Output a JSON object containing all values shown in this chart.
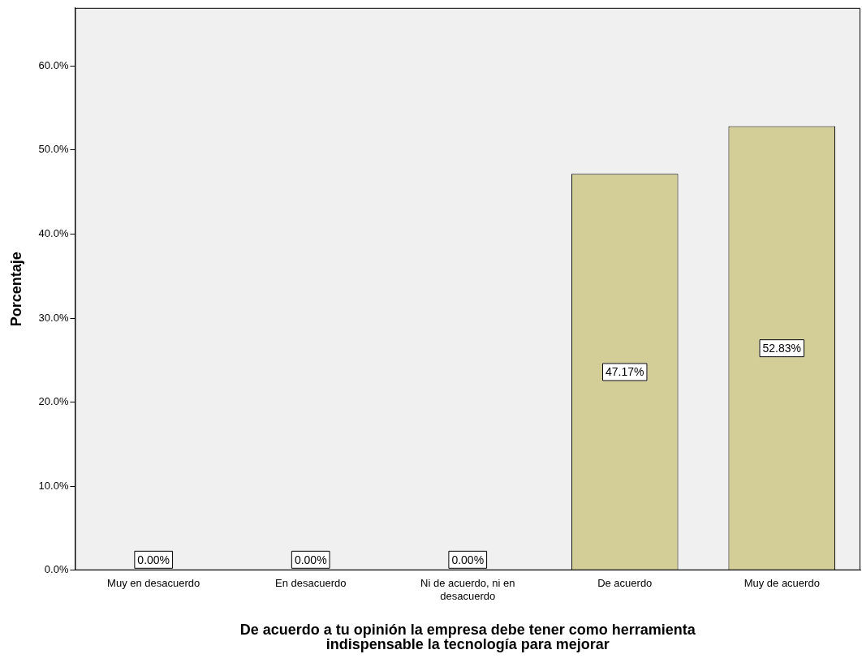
{
  "chart_data": {
    "type": "bar",
    "xlabel": "De acuerdo a tu opinión la empresa debe tener como herramienta indispensable la tecnología para mejorar",
    "ylabel": "Porcentaje",
    "categories": [
      "Muy en desacuerdo",
      "En desacuerdo",
      "Ni de acuerdo, ni en desacuerdo",
      "De acuerdo",
      "Muy de acuerdo"
    ],
    "values": [
      0,
      0,
      0,
      47.17,
      52.83
    ],
    "color": "#d3ce97",
    "value_labels": [
      "0.00%",
      "0.00%",
      "0.00%",
      "47.17%",
      "52.83%"
    ],
    "ylim": [
      0,
      66.9
    ],
    "yticks": [
      {
        "value": 0,
        "label": "0.0%"
      },
      {
        "value": 10,
        "label": "10.0%"
      },
      {
        "value": 20,
        "label": "20.0%"
      },
      {
        "value": 30,
        "label": "30.0%"
      },
      {
        "value": 40,
        "label": "40.0%"
      },
      {
        "value": 50,
        "label": "50.0%"
      },
      {
        "value": 60,
        "label": "60.0%"
      }
    ],
    "grid": false,
    "legend": false
  }
}
